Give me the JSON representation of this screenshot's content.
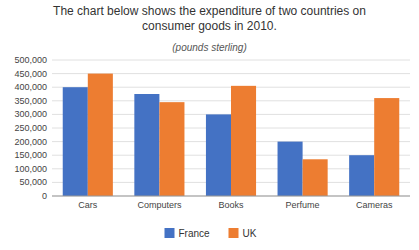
{
  "chart_data": {
    "type": "bar",
    "title": "The chart below shows the expenditure of two countries on\nconsumer goods in 2010.",
    "subtitle": "(pounds sterling)",
    "categories": [
      "Cars",
      "Computers",
      "Books",
      "Perfume",
      "Cameras"
    ],
    "series": [
      {
        "name": "France",
        "color": "#4472C4",
        "values": [
          400000,
          375000,
          300000,
          200000,
          150000
        ]
      },
      {
        "name": "UK",
        "color": "#ED7D31",
        "values": [
          450000,
          345000,
          405000,
          135000,
          360000
        ]
      }
    ],
    "ylim": [
      0,
      500000
    ],
    "yticks": [
      0,
      {
        "value": 50000,
        "label": "50,000"
      },
      {
        "value": 100000,
        "label": "100,000"
      },
      {
        "value": 150000,
        "label": "150,000"
      },
      {
        "value": 200000,
        "label": "200,000"
      },
      {
        "value": 250000,
        "label": "250,000"
      },
      {
        "value": 300000,
        "label": "300,000"
      },
      {
        "value": 350000,
        "label": "350,000"
      },
      {
        "value": 400000,
        "label": "400,000"
      },
      {
        "value": 450000,
        "label": "450,000"
      },
      {
        "value": 500000,
        "label": "500,000"
      }
    ],
    "grid": true,
    "legend": "bottom"
  }
}
